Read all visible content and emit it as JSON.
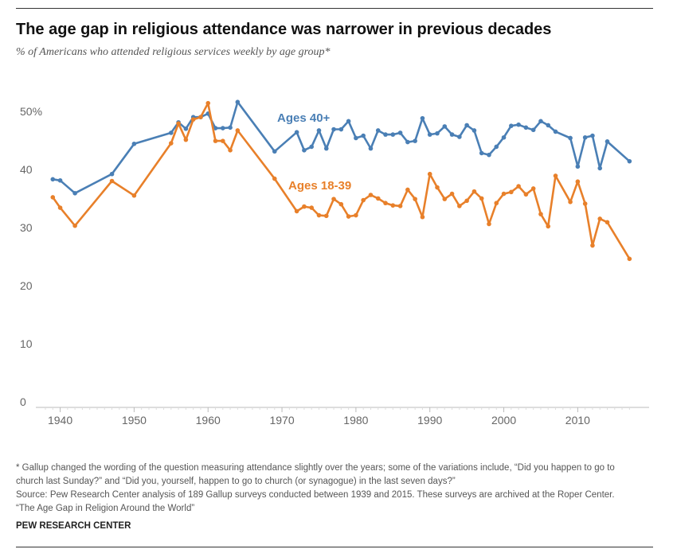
{
  "header": {
    "title": "The age gap in religious attendance was narrower in previous decades",
    "subtitle": "% of Americans who attended religious services weekly by age group*"
  },
  "colors": {
    "older": "#4a7fb5",
    "younger": "#e8802a",
    "axis": "#bbbbbb",
    "tick_text": "#666666"
  },
  "chart_data": {
    "type": "line",
    "title": "The age gap in religious attendance was narrower in previous decades",
    "subtitle": "% of Americans who attended religious services weekly by age group*",
    "xlim": [
      1938,
      2017.5
    ],
    "ylim": [
      0,
      55
    ],
    "x_ticks": [
      1940,
      1950,
      1960,
      1970,
      1980,
      1990,
      2000,
      2010
    ],
    "y_ticks": [
      0,
      10,
      20,
      30,
      40,
      50
    ],
    "y_tick_labels": [
      "0",
      "10",
      "20",
      "30",
      "40",
      "50%"
    ],
    "grid": false,
    "series": [
      {
        "name": "Ages 40+",
        "color": "#4a7fb5",
        "points": [
          [
            1939,
            39.0
          ],
          [
            1940,
            38.8
          ],
          [
            1942,
            36.6
          ],
          [
            1947,
            39.9
          ],
          [
            1950,
            45.1
          ],
          [
            1955,
            47.0
          ],
          [
            1956,
            48.8
          ],
          [
            1957,
            47.7
          ],
          [
            1958,
            49.7
          ],
          [
            1959,
            49.7
          ],
          [
            1960,
            50.3
          ],
          [
            1961,
            47.8
          ],
          [
            1962,
            47.8
          ],
          [
            1963,
            47.9
          ],
          [
            1964,
            52.3
          ],
          [
            1969,
            43.8
          ],
          [
            1972,
            47.1
          ],
          [
            1973,
            44.0
          ],
          [
            1974,
            44.6
          ],
          [
            1975,
            47.4
          ],
          [
            1976,
            44.3
          ],
          [
            1977,
            47.6
          ],
          [
            1978,
            47.6
          ],
          [
            1979,
            49.0
          ],
          [
            1980,
            46.1
          ],
          [
            1981,
            46.5
          ],
          [
            1982,
            44.3
          ],
          [
            1983,
            47.4
          ],
          [
            1984,
            46.7
          ],
          [
            1985,
            46.7
          ],
          [
            1986,
            47.0
          ],
          [
            1987,
            45.4
          ],
          [
            1988,
            45.6
          ],
          [
            1989,
            49.5
          ],
          [
            1990,
            46.7
          ],
          [
            1991,
            46.9
          ],
          [
            1992,
            48.1
          ],
          [
            1993,
            46.7
          ],
          [
            1994,
            46.3
          ],
          [
            1995,
            48.3
          ],
          [
            1996,
            47.4
          ],
          [
            1997,
            43.5
          ],
          [
            1998,
            43.2
          ],
          [
            1999,
            44.6
          ],
          [
            2000,
            46.2
          ],
          [
            2001,
            48.2
          ],
          [
            2002,
            48.4
          ],
          [
            2003,
            47.9
          ],
          [
            2004,
            47.5
          ],
          [
            2005,
            49.0
          ],
          [
            2006,
            48.3
          ],
          [
            2007,
            47.2
          ],
          [
            2009,
            46.1
          ],
          [
            2010,
            41.2
          ],
          [
            2011,
            46.2
          ],
          [
            2012,
            46.5
          ],
          [
            2013,
            40.9
          ],
          [
            2014,
            45.5
          ],
          [
            2017,
            42.1
          ]
        ]
      },
      {
        "name": "Ages 18-39",
        "color": "#e8802a",
        "points": [
          [
            1939,
            35.9
          ],
          [
            1940,
            34.1
          ],
          [
            1942,
            31.0
          ],
          [
            1947,
            38.7
          ],
          [
            1950,
            36.2
          ],
          [
            1955,
            45.2
          ],
          [
            1956,
            48.6
          ],
          [
            1957,
            45.8
          ],
          [
            1958,
            49.3
          ],
          [
            1959,
            49.7
          ],
          [
            1960,
            52.1
          ],
          [
            1961,
            45.6
          ],
          [
            1962,
            45.6
          ],
          [
            1963,
            44.0
          ],
          [
            1964,
            47.4
          ],
          [
            1969,
            39.1
          ],
          [
            1972,
            33.5
          ],
          [
            1973,
            34.3
          ],
          [
            1974,
            34.1
          ],
          [
            1975,
            32.8
          ],
          [
            1976,
            32.7
          ],
          [
            1977,
            35.6
          ],
          [
            1978,
            34.7
          ],
          [
            1979,
            32.6
          ],
          [
            1980,
            32.8
          ],
          [
            1981,
            35.4
          ],
          [
            1982,
            36.3
          ],
          [
            1983,
            35.7
          ],
          [
            1984,
            34.9
          ],
          [
            1985,
            34.5
          ],
          [
            1986,
            34.4
          ],
          [
            1987,
            37.2
          ],
          [
            1988,
            35.6
          ],
          [
            1989,
            32.5
          ],
          [
            1990,
            39.9
          ],
          [
            1991,
            37.6
          ],
          [
            1992,
            35.6
          ],
          [
            1993,
            36.5
          ],
          [
            1994,
            34.4
          ],
          [
            1995,
            35.3
          ],
          [
            1996,
            36.9
          ],
          [
            1997,
            35.7
          ],
          [
            1998,
            31.3
          ],
          [
            1999,
            34.9
          ],
          [
            2000,
            36.5
          ],
          [
            2001,
            36.8
          ],
          [
            2002,
            37.8
          ],
          [
            2003,
            36.4
          ],
          [
            2004,
            37.4
          ],
          [
            2005,
            33.0
          ],
          [
            2006,
            30.9
          ],
          [
            2007,
            39.6
          ],
          [
            2009,
            35.1
          ],
          [
            2010,
            38.6
          ],
          [
            2011,
            34.8
          ],
          [
            2012,
            27.6
          ],
          [
            2013,
            32.2
          ],
          [
            2014,
            31.6
          ],
          [
            2017,
            25.3
          ]
        ]
      }
    ],
    "annotations": [
      {
        "text": "Ages 40+",
        "series": 0
      },
      {
        "text": "Ages 18-39",
        "series": 1
      }
    ]
  },
  "footer": {
    "note_line1": "* Gallup changed the wording of the question measuring attendance slightly over the years; some of the variations include, “Did you happen to go to",
    "note_line2": "church last Sunday?” and “Did you, yourself, happen to go to church (or synagogue) in the last seven days?”",
    "source": "Source: Pew Research Center analysis of 189 Gallup surveys conducted between 1939 and 2015. These surveys are archived at the Roper Center.",
    "report": "“The Age Gap in Religion Around the World”",
    "org": "PEW RESEARCH CENTER"
  }
}
